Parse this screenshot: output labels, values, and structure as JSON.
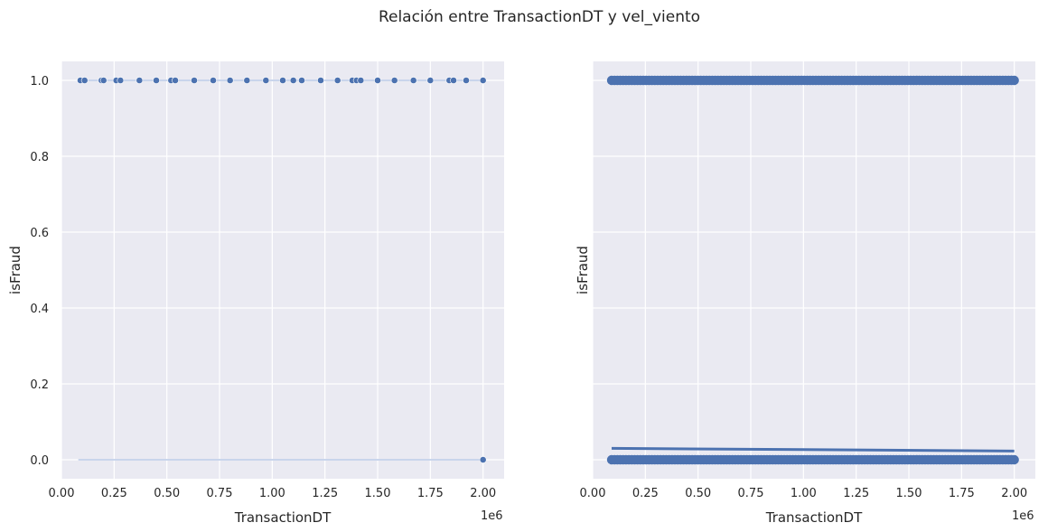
{
  "figure": {
    "title": "Relación entre TransactionDT y vel_viento",
    "background": "#ffffff",
    "axes_facecolor": "#eaeaf2",
    "grid_color": "#ffffff",
    "accent": "#4c72b0",
    "light_accent": "#c9d5ec"
  },
  "chart_data": [
    {
      "type": "scatter",
      "title": "",
      "xlabel": "TransactionDT",
      "ylabel": "isFraud",
      "x_offset_label": "1e6",
      "xlim": [
        0.0,
        2.1
      ],
      "ylim": [
        -0.05,
        1.05
      ],
      "xticks": [
        0.0,
        0.25,
        0.5,
        0.75,
        1.0,
        1.25,
        1.5,
        1.75,
        2.0
      ],
      "xtick_labels": [
        "0.00",
        "0.25",
        "0.50",
        "0.75",
        "1.00",
        "1.25",
        "1.50",
        "1.75",
        "2.00"
      ],
      "yticks": [
        0.0,
        0.2,
        0.4,
        0.6,
        0.8,
        1.0
      ],
      "ytick_labels": [
        "0.0",
        "0.2",
        "0.4",
        "0.6",
        "0.8",
        "1.0"
      ],
      "grid": true,
      "series": [
        {
          "values_y": 1.0,
          "x": [
            0.09,
            0.11,
            0.19,
            0.2,
            0.26,
            0.28,
            0.37,
            0.45,
            0.52,
            0.54,
            0.63,
            0.72,
            0.8,
            0.88,
            0.97,
            1.05,
            1.1,
            1.14,
            1.23,
            1.31,
            1.38,
            1.4,
            1.42,
            1.5,
            1.58,
            1.67,
            1.75,
            1.84,
            1.86,
            1.92,
            2.0
          ]
        },
        {
          "values_y": 0.0,
          "x": [
            2.0
          ]
        }
      ]
    },
    {
      "type": "scatter",
      "title": "",
      "xlabel": "TransactionDT",
      "ylabel": "isFraud",
      "x_offset_label": "1e6",
      "xlim": [
        0.0,
        2.1
      ],
      "ylim": [
        -0.05,
        1.05
      ],
      "xticks": [
        0.0,
        0.25,
        0.5,
        0.75,
        1.0,
        1.25,
        1.5,
        1.75,
        2.0
      ],
      "xtick_labels": [
        "0.00",
        "0.25",
        "0.50",
        "0.75",
        "1.00",
        "1.25",
        "1.50",
        "1.75",
        "2.00"
      ],
      "yticks": [
        0.0,
        0.2,
        0.4,
        0.6,
        0.8,
        1.0
      ],
      "grid": true,
      "series": [
        {
          "values_y": 1.0,
          "x_range": [
            0.09,
            2.0
          ]
        },
        {
          "values_y": 0.0,
          "x_range": [
            0.09,
            2.0
          ]
        }
      ],
      "regression_line": {
        "x": [
          0.09,
          2.0
        ],
        "y": [
          0.03,
          0.023
        ]
      }
    }
  ]
}
